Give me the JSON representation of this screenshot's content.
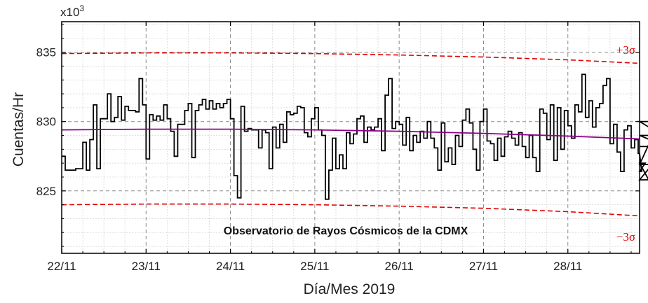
{
  "chart_data": {
    "type": "line",
    "title": "",
    "xlabel": "Día/Mes 2019",
    "ylabel": "Cuentas/Hr",
    "y_multiplier": "x10",
    "y_multiplier_exp": "3",
    "annotation": "Observatorio de Rayos Cósmicos de la CDMX",
    "x_unit": "days since 22/11 00:00",
    "xlim": [
      0,
      6.85
    ],
    "ylim": [
      820.5,
      837.2
    ],
    "x_ticks": [
      {
        "x": 0,
        "label": "22/11"
      },
      {
        "x": 1,
        "label": "23/11"
      },
      {
        "x": 2,
        "label": "24/11"
      },
      {
        "x": 3,
        "label": "25/11"
      },
      {
        "x": 4,
        "label": "26/11"
      },
      {
        "x": 5,
        "label": "27/11"
      },
      {
        "x": 6,
        "label": "28/11"
      }
    ],
    "y_ticks": [
      {
        "y": 825,
        "label": "825"
      },
      {
        "y": 830,
        "label": "830"
      },
      {
        "y": 835,
        "label": "835"
      }
    ],
    "grid": true,
    "step_hours": 1,
    "series": [
      {
        "name": "",
        "style": "step",
        "color": "#000000",
        "values": [
          827.5,
          826.5,
          826.5,
          826.5,
          826.6,
          826.6,
          828.5,
          826.5,
          828.7,
          831.2,
          826.6,
          830.2,
          830.2,
          832.0,
          830.0,
          830.3,
          831.8,
          830.1,
          831.1,
          830.8,
          830.8,
          830.7,
          833.1,
          831.2,
          827.3,
          830.5,
          830.1,
          830.4,
          830.1,
          831.2,
          830.2,
          829.3,
          827.5,
          829.8,
          829.8,
          830.8,
          831.3,
          827.4,
          830.8,
          831.2,
          831.6,
          830.9,
          831.5,
          830.9,
          831.3,
          831.0,
          831.3,
          831.6,
          830.2,
          826.1,
          824.5,
          831.1,
          829.3,
          829.5,
          829.4,
          829.4,
          828.1,
          829.4,
          829.2,
          826.6,
          829.6,
          828.1,
          829.8,
          828.5,
          830.7,
          830.5,
          830.6,
          831.1,
          831.0,
          829.2,
          828.9,
          830.2,
          831.0,
          829.4,
          829.0,
          824.4,
          826.5,
          828.8,
          826.6,
          827.6,
          826.6,
          829.2,
          828.4,
          829.1,
          830.2,
          830.4,
          828.5,
          829.6,
          829.4,
          829.6,
          830.2,
          827.9,
          831.9,
          833.1,
          829.5,
          830.0,
          829.8,
          828.3,
          830.3,
          827.9,
          829.0,
          828.5,
          829.3,
          828.8,
          830.0,
          828.8,
          828.1,
          826.5,
          829.9,
          827.1,
          828.1,
          826.9,
          829.0,
          828.2,
          830.1,
          830.9,
          829.9,
          828.0,
          826.5,
          830.0,
          830.9,
          828.6,
          828.4,
          827.2,
          828.8,
          827.5,
          828.9,
          829.3,
          828.8,
          828.3,
          829.2,
          828.2,
          827.4,
          829.0,
          827.4,
          826.4,
          830.9,
          830.6,
          828.7,
          831.2,
          827.2,
          831.0,
          828.0,
          830.8,
          829.7,
          828.8,
          831.2,
          830.7,
          833.4,
          830.3,
          831.5,
          829.6,
          831.0,
          831.3,
          832.6,
          833.1,
          828.4,
          829.8,
          827.8,
          826.4,
          829.4,
          829.7,
          828.1,
          828.7,
          827.7,
          826.4,
          827.0,
          825.8,
          826.9,
          826.9,
          830.0,
          829.0,
          828.2
        ]
      },
      {
        "name": "",
        "style": "trend",
        "color": "#8b008b",
        "x": [
          0,
          1,
          2,
          3,
          4,
          5,
          6,
          6.85
        ],
        "values": [
          829.4,
          829.45,
          829.45,
          829.4,
          829.3,
          829.15,
          828.95,
          828.75
        ]
      },
      {
        "name": "+3σ",
        "style": "dashed",
        "color": "#e00000",
        "x": [
          0,
          1,
          2,
          3,
          4,
          5,
          6,
          6.85
        ],
        "values": [
          834.9,
          834.95,
          834.95,
          834.9,
          834.8,
          834.65,
          834.45,
          834.2
        ]
      },
      {
        "name": "−3σ",
        "style": "dashed",
        "color": "#e00000",
        "x": [
          0,
          1,
          2,
          3,
          4,
          5,
          6,
          6.85
        ],
        "values": [
          824.0,
          824.05,
          824.05,
          824.0,
          823.9,
          823.75,
          823.5,
          823.2
        ]
      }
    ],
    "band_labels": {
      "upper": "+3σ",
      "lower": "−3σ"
    }
  }
}
